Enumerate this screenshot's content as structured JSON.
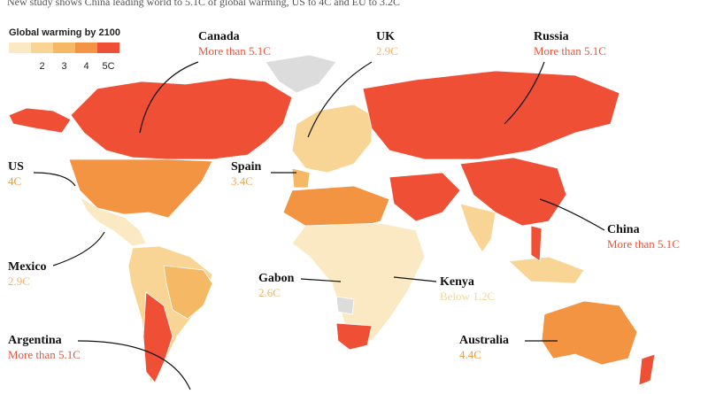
{
  "header": {
    "subtitle": "New study shows China leading world to 5.1C of global warming, US to 4C and EU to 3.2C"
  },
  "legend": {
    "title": "Global warming by 2100",
    "ticks": [
      "2",
      "3",
      "4",
      "5C"
    ],
    "colors": [
      "#fbe9c4",
      "#f8d594",
      "#f5b865",
      "#f29442",
      "#ee4f35"
    ]
  },
  "annotations": [
    {
      "name": "Canada",
      "value": "More than 5.1C",
      "color": "#e8543b"
    },
    {
      "name": "UK",
      "value": "2.9C",
      "color": "#f2b469"
    },
    {
      "name": "Russia",
      "value": "More than 5.1C",
      "color": "#e8543b"
    },
    {
      "name": "US",
      "value": "4C",
      "color": "#ef9a3e"
    },
    {
      "name": "Spain",
      "value": "3.4C",
      "color": "#f0a95a"
    },
    {
      "name": "China",
      "value": "More than 5.1C",
      "color": "#e8543b"
    },
    {
      "name": "Mexico",
      "value": "2.9C",
      "color": "#f2b469"
    },
    {
      "name": "Gabon",
      "value": "2.6C",
      "color": "#f2b469"
    },
    {
      "name": "Kenya",
      "value": "Below 1.2C",
      "color": "#f3d49a"
    },
    {
      "name": "Argentina",
      "value": "More than 5.1C",
      "color": "#e8543b"
    },
    {
      "name": "Australia",
      "value": "4.4C",
      "color": "#ef9a3e"
    }
  ]
}
